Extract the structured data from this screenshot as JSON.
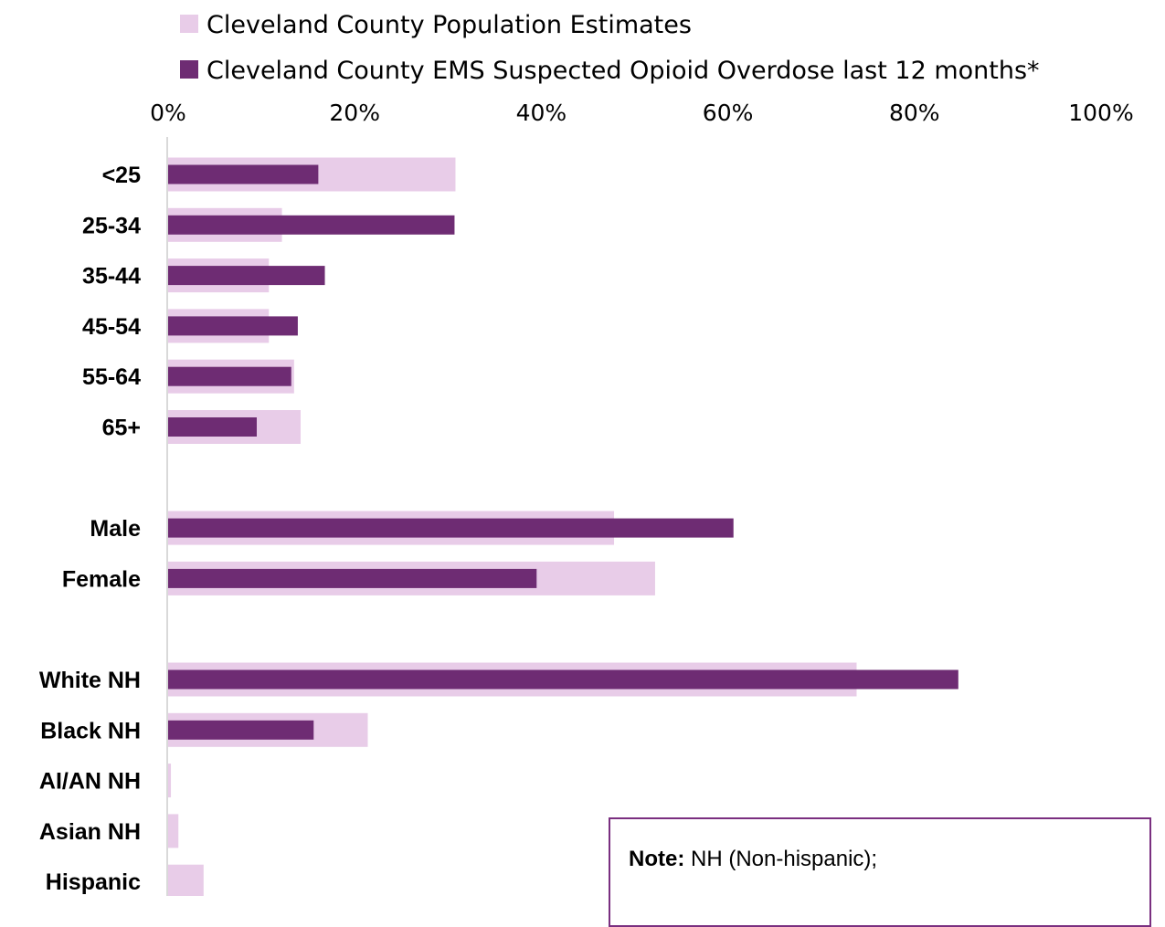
{
  "chart_data": {
    "type": "bar",
    "orientation": "horizontal",
    "categories": [
      "<25",
      "25-34",
      "35-44",
      "45-54",
      "55-64",
      "65+",
      "Male",
      "Female",
      "White NH",
      "Black NH",
      "AI/AN NH",
      "Asian NH",
      "Hispanic"
    ],
    "groups": [
      {
        "categories": [
          "<25",
          "25-34",
          "35-44",
          "45-54",
          "55-64",
          "65+"
        ]
      },
      {
        "categories": [
          "Male",
          "Female"
        ]
      },
      {
        "categories": [
          "White NH",
          "Black NH",
          "AI/AN NH",
          "Asian NH",
          "Hispanic"
        ]
      }
    ],
    "series": [
      {
        "name": "Cleveland County Population Estimates",
        "color": "#e8cce8",
        "values": [
          30.8,
          12.2,
          10.8,
          10.8,
          13.5,
          14.2,
          47.8,
          52.2,
          73.8,
          21.4,
          0.3,
          1.1,
          3.8
        ]
      },
      {
        "name": "Cleveland County EMS Suspected Opioid Overdose last 12 months*",
        "color": "#6e2c73",
        "values": [
          16.1,
          30.7,
          16.8,
          13.9,
          13.2,
          9.5,
          60.6,
          39.5,
          84.7,
          15.6,
          0,
          0,
          0
        ]
      }
    ],
    "xlim": [
      0,
      100
    ],
    "xticks": [
      "0%",
      "20%",
      "40%",
      "60%",
      "80%",
      "100%"
    ],
    "legend_position": "top",
    "grid": false
  },
  "note": {
    "label": "Note:",
    "text": " NH (Non-hispanic);"
  }
}
